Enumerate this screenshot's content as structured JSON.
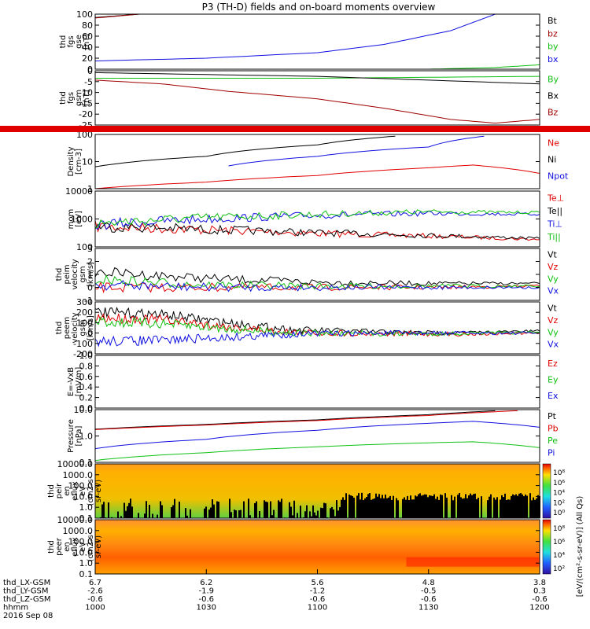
{
  "title": "P3 (TH-D) fields and on-board moments overview",
  "colors": {
    "black": "#000000",
    "red": "#e00000",
    "darkred": "#a00000",
    "blue": "#1010e0",
    "green": "#10c010"
  },
  "chart_data": [
    {
      "id": "p1",
      "type": "line",
      "ylabel": [
        "thd",
        "fgs",
        "gse",
        "[nT]"
      ],
      "yticks": [
        "0",
        "20",
        "40",
        "60",
        "80",
        "100"
      ],
      "ylim": [
        0,
        100
      ],
      "yscale": "linear",
      "series": [
        {
          "name": "Bt",
          "color": "#000000",
          "points": [
            [
              10.0,
              94
            ],
            [
              10.2,
              100
            ]
          ]
        },
        {
          "name": "bz",
          "color": "#a00000",
          "points": [
            [
              10.0,
              93
            ],
            [
              10.2,
              100
            ]
          ]
        },
        {
          "name": "by",
          "color": "#10c010",
          "points": [
            [
              10.0,
              0
            ],
            [
              11.5,
              0
            ],
            [
              11.8,
              3
            ],
            [
              12.0,
              8
            ]
          ]
        },
        {
          "name": "bx",
          "color": "#1010e0",
          "points": [
            [
              10.0,
              15
            ],
            [
              10.5,
              20
            ],
            [
              11.0,
              30
            ],
            [
              11.3,
              45
            ],
            [
              11.6,
              70
            ],
            [
              11.8,
              100
            ]
          ]
        }
      ]
    },
    {
      "id": "p2",
      "type": "line",
      "ylabel": [
        "thd",
        "fgs",
        "gsm",
        "[nT]"
      ],
      "yticks": [
        "-25",
        "-20",
        "-15",
        "-10",
        "-5",
        "0"
      ],
      "ylim": [
        -27,
        2
      ],
      "yscale": "linear",
      "series": [
        {
          "name": "By",
          "color": "#10c010",
          "points": [
            [
              10.0,
              -2
            ],
            [
              10.5,
              -2
            ],
            [
              11.0,
              -2
            ],
            [
              11.5,
              -1.5
            ],
            [
              12.0,
              -1
            ]
          ]
        },
        {
          "name": "Bx",
          "color": "#000000",
          "points": [
            [
              10.0,
              1
            ],
            [
              10.5,
              0
            ],
            [
              11.0,
              -1
            ],
            [
              11.5,
              -3
            ],
            [
              12.0,
              -5
            ]
          ]
        },
        {
          "name": "Bz",
          "color": "#a00000",
          "points": [
            [
              10.0,
              -3
            ],
            [
              10.3,
              -5
            ],
            [
              10.6,
              -9
            ],
            [
              11.0,
              -13
            ],
            [
              11.3,
              -18
            ],
            [
              11.6,
              -24
            ],
            [
              11.8,
              -26
            ],
            [
              12.0,
              -24
            ]
          ]
        }
      ]
    },
    {
      "id": "p3",
      "type": "line",
      "ylabel": [
        "Density",
        "[cm-3]"
      ],
      "yticks": [
        "1",
        "10",
        "100"
      ],
      "ylim": [
        1,
        300
      ],
      "yscale": "log",
      "series": [
        {
          "name": "Ne",
          "color": "#e00000",
          "points": [
            [
              10.0,
              1
            ],
            [
              10.5,
              2
            ],
            [
              11.0,
              4
            ],
            [
              11.5,
              9
            ],
            [
              11.7,
              12
            ],
            [
              12.0,
              5
            ]
          ]
        },
        {
          "name": "Ni",
          "color": "#000000",
          "points": [
            [
              10.0,
              10
            ],
            [
              10.5,
              30
            ],
            [
              11.0,
              100
            ],
            [
              11.35,
              250
            ]
          ]
        },
        {
          "name": "Npot",
          "color": "#1010e0",
          "points": [
            [
              10.6,
              11
            ],
            [
              11.0,
              30
            ],
            [
              11.5,
              80
            ],
            [
              11.75,
              250
            ]
          ]
        }
      ]
    },
    {
      "id": "p4",
      "type": "line",
      "ylabel": [
        "mom",
        "[eV]"
      ],
      "yticks": [
        "100",
        "1000",
        "10000"
      ],
      "ylim": [
        50,
        10000
      ],
      "yscale": "log",
      "series": [
        {
          "name": "Te⊥",
          "color": "#e00000",
          "points": [
            [
              10.0,
              350
            ],
            [
              10.5,
              250
            ],
            [
              11.0,
              180
            ],
            [
              11.5,
              140
            ],
            [
              12.0,
              100
            ]
          ]
        },
        {
          "name": "Te||",
          "color": "#000000",
          "points": [
            [
              10.0,
              360
            ],
            [
              10.5,
              260
            ],
            [
              11.0,
              190
            ],
            [
              11.5,
              150
            ],
            [
              12.0,
              110
            ]
          ]
        },
        {
          "name": "Ti⊥",
          "color": "#1010e0",
          "points": [
            [
              10.0,
              400
            ],
            [
              10.5,
              700
            ],
            [
              11.0,
              1000
            ],
            [
              11.5,
              1200
            ],
            [
              12.0,
              1100
            ]
          ]
        },
        {
          "name": "Ti||",
          "color": "#10c010",
          "points": [
            [
              10.0,
              450
            ],
            [
              10.5,
              800
            ],
            [
              11.0,
              1100
            ],
            [
              11.5,
              1400
            ],
            [
              12.0,
              1300
            ]
          ]
        }
      ]
    },
    {
      "id": "p5",
      "type": "line",
      "ylabel": [
        "thd",
        "peim",
        "velocity",
        "gsm",
        "[km/s]"
      ],
      "yticks": [
        "-1",
        "0",
        "1",
        "2",
        "3"
      ],
      "ylim": [
        -1,
        3
      ],
      "yscale": "linear",
      "series": [
        {
          "name": "Vt",
          "color": "#000000",
          "points": [
            [
              10.0,
              1.2
            ],
            [
              10.5,
              0.7
            ],
            [
              11.0,
              0.4
            ],
            [
              11.5,
              0.3
            ],
            [
              12.0,
              0.3
            ]
          ]
        },
        {
          "name": "Vz",
          "color": "#e00000",
          "points": [
            [
              10.0,
              0.0
            ],
            [
              10.5,
              0.0
            ],
            [
              11.0,
              0.0
            ],
            [
              11.5,
              0.0
            ],
            [
              12.0,
              0.1
            ]
          ]
        },
        {
          "name": "Vy",
          "color": "#10c010",
          "points": [
            [
              10.0,
              0.6
            ],
            [
              10.5,
              0.2
            ],
            [
              11.0,
              0.1
            ],
            [
              11.5,
              0.1
            ],
            [
              12.0,
              0.1
            ]
          ]
        },
        {
          "name": "Vx",
          "color": "#1010e0",
          "points": [
            [
              10.0,
              0.2
            ],
            [
              10.5,
              0.0
            ],
            [
              11.0,
              0.0
            ],
            [
              11.5,
              0.0
            ],
            [
              12.0,
              0.0
            ]
          ]
        }
      ]
    },
    {
      "id": "p6",
      "type": "line",
      "ylabel": [
        "thd",
        "peem",
        "velocity",
        "gsm",
        "[km/s]"
      ],
      "yticks": [
        "-200",
        "-100",
        "0",
        "100",
        "200",
        "300"
      ],
      "ylim": [
        -200,
        300
      ],
      "yscale": "linear",
      "series": [
        {
          "name": "Vt",
          "color": "#000000",
          "points": [
            [
              10.0,
              200
            ],
            [
              10.3,
              180
            ],
            [
              10.6,
              100
            ],
            [
              10.9,
              30
            ],
            [
              11.3,
              10
            ],
            [
              11.6,
              0
            ],
            [
              12.0,
              20
            ]
          ]
        },
        {
          "name": "Vz",
          "color": "#e00000",
          "points": [
            [
              10.0,
              150
            ],
            [
              10.3,
              130
            ],
            [
              10.6,
              60
            ],
            [
              10.9,
              5
            ],
            [
              11.3,
              -5
            ],
            [
              11.6,
              -10
            ],
            [
              12.0,
              0
            ]
          ]
        },
        {
          "name": "Vy",
          "color": "#10c010",
          "points": [
            [
              10.0,
              110
            ],
            [
              10.3,
              90
            ],
            [
              10.6,
              40
            ],
            [
              10.9,
              0
            ],
            [
              11.3,
              -5
            ],
            [
              11.6,
              -5
            ],
            [
              12.0,
              5
            ]
          ]
        },
        {
          "name": "Vx",
          "color": "#1010e0",
          "points": [
            [
              10.0,
              -80
            ],
            [
              10.3,
              -70
            ],
            [
              10.6,
              -40
            ],
            [
              10.9,
              -10
            ],
            [
              11.3,
              0
            ],
            [
              11.6,
              0
            ],
            [
              12.0,
              0
            ]
          ]
        }
      ]
    },
    {
      "id": "p7",
      "type": "line",
      "ylabel": [
        "E=-VxB",
        "[mV/m]"
      ],
      "yticks": [
        "0.0",
        "0.2",
        "0.4",
        "0.6",
        "0.8",
        "1.0"
      ],
      "ylim": [
        0,
        1
      ],
      "yscale": "linear",
      "series": [
        {
          "name": "Ez",
          "color": "#e00000",
          "points": []
        },
        {
          "name": "Ey",
          "color": "#10c010",
          "points": []
        },
        {
          "name": "Ex",
          "color": "#1010e0",
          "points": []
        }
      ]
    },
    {
      "id": "p8",
      "type": "line",
      "ylabel": [
        "Pressure",
        "[nPa]"
      ],
      "yticks": [
        "0.1",
        "1.0",
        "10.0"
      ],
      "ylim": [
        0.08,
        40
      ],
      "yscale": "log",
      "series": [
        {
          "name": "Pt",
          "color": "#000000",
          "points": [
            [
              10.0,
              4
            ],
            [
              10.5,
              7
            ],
            [
              11.0,
              12
            ],
            [
              11.5,
              22
            ],
            [
              11.8,
              35
            ]
          ]
        },
        {
          "name": "Pb",
          "color": "#e00000",
          "points": [
            [
              10.0,
              3.8
            ],
            [
              10.5,
              6.5
            ],
            [
              11.0,
              11
            ],
            [
              11.5,
              20
            ],
            [
              11.9,
              35
            ]
          ]
        },
        {
          "name": "Pe",
          "color": "#10c010",
          "points": [
            [
              10.0,
              0.1
            ],
            [
              10.5,
              0.25
            ],
            [
              11.0,
              0.5
            ],
            [
              11.5,
              0.8
            ],
            [
              11.7,
              0.9
            ],
            [
              12.0,
              0.45
            ]
          ]
        },
        {
          "name": "Pi",
          "color": "#1010e0",
          "points": [
            [
              10.0,
              0.4
            ],
            [
              10.5,
              1.2
            ],
            [
              11.0,
              3.5
            ],
            [
              11.5,
              8
            ],
            [
              11.7,
              10
            ],
            [
              12.0,
              5
            ]
          ]
        }
      ]
    },
    {
      "id": "p9",
      "type": "heatmap",
      "ylabel": [
        "thd",
        "peir",
        "en",
        "eflux",
        "eV",
        "(cm2-s-",
        "sr-eV)"
      ],
      "yticks": [
        "0.1",
        "1.0",
        "10.0",
        "100.0",
        "1000.0",
        "10000.0"
      ],
      "ylim": [
        0.05,
        30000
      ],
      "yscale": "log"
    },
    {
      "id": "p10",
      "type": "heatmap",
      "ylabel": [
        "thd",
        "peer",
        "en",
        "eflux",
        "eV",
        "(cm2-s-",
        "sr-eV)"
      ],
      "yticks": [
        "0.1",
        "1.0",
        "10.0",
        "100.0",
        "1000.0",
        "10000.0"
      ],
      "ylim": [
        0.05,
        30000
      ],
      "yscale": "log"
    }
  ],
  "colorbars": [
    {
      "ticks": [
        "10⁸",
        "10⁶",
        "10⁴",
        "10²",
        "10⁰"
      ]
    },
    {
      "ticks": [
        "10⁸",
        "10⁶",
        "10⁴",
        "10²"
      ]
    }
  ],
  "colorbar_label": "[eV/(cm²-s-sr-eV)] (All Qs)",
  "xaxis": {
    "range": [
      10.0,
      12.0
    ],
    "ticks": [
      10.0,
      10.5,
      11.0,
      11.5,
      12.0
    ],
    "rows": [
      {
        "label": "thd_LX-GSM",
        "values": [
          "6.7",
          "6.2",
          "5.6",
          "4.8",
          "3.8"
        ]
      },
      {
        "label": "thd_LY-GSM",
        "values": [
          "-2.6",
          "-1.9",
          "-1.2",
          "-0.5",
          "0.3"
        ]
      },
      {
        "label": "thd_LZ-GSM",
        "values": [
          "-0.6",
          "-0.6",
          "-0.6",
          "-0.6",
          "-0.6"
        ]
      },
      {
        "label": "hhmm",
        "values": [
          "1000",
          "1030",
          "1100",
          "1130",
          "1200"
        ]
      }
    ],
    "date": "2016 Sep 08"
  }
}
